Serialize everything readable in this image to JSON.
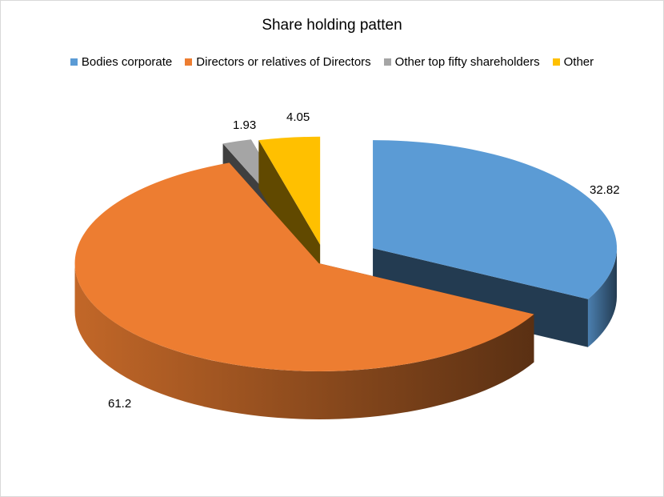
{
  "chart_data": {
    "type": "pie",
    "style": "3d-exploded",
    "title": "Share holding patten",
    "legend_position": "top",
    "categories": [
      "Bodies corporate",
      "Directors or relatives of Directors",
      "Other top fifty shareholders",
      "Other"
    ],
    "values": [
      32.82,
      61.2,
      1.93,
      4.05
    ],
    "value_labels": [
      "32.82",
      "61.2",
      "1.93",
      "4.05"
    ],
    "colors": [
      "#5B9BD5",
      "#ED7D31",
      "#A5A5A5",
      "#FFC000"
    ]
  }
}
